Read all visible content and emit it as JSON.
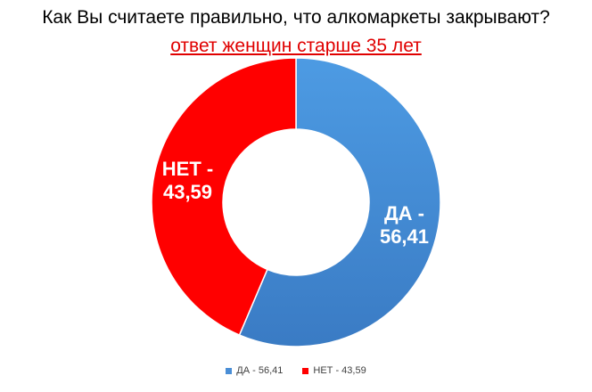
{
  "header": {
    "title": "Как Вы считаете правильно, что алкомаркеты закрывают?",
    "subtitle": "ответ женщин старше 35 лет"
  },
  "chart_data": {
    "type": "pie",
    "donut": true,
    "title": "Как Вы считаете правильно, что алкомаркеты закрывают?",
    "subtitle": "ответ женщин старше 35 лет",
    "categories": [
      "ДА",
      "НЕТ"
    ],
    "values": [
      56.41,
      43.59
    ],
    "slices": [
      {
        "name": "ДА",
        "value": 56.41,
        "color": "#4a8ed6",
        "label_lines": [
          "ДА -",
          "56,41"
        ]
      },
      {
        "name": "НЕТ",
        "value": 43.59,
        "color": "#ff0000",
        "label_lines": [
          "НЕТ -",
          "43,59"
        ]
      }
    ],
    "legend_position": "bottom",
    "legend": [
      {
        "label": "ДА - 56,41",
        "color": "#4a8ed6"
      },
      {
        "label": "НЕТ - 43,59",
        "color": "#ff0000"
      }
    ]
  },
  "colors": {
    "subtitle": "#e00000",
    "yes": "#4a8ed6",
    "no": "#ff0000"
  }
}
